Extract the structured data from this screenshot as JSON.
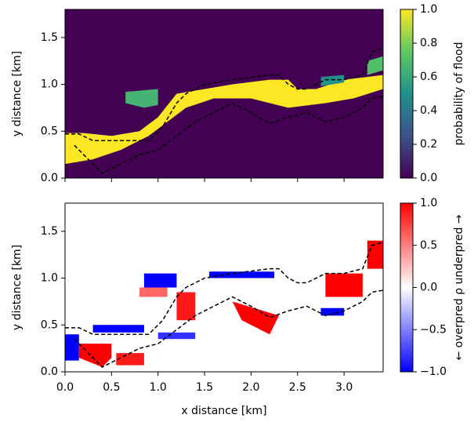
{
  "chart_data": [
    {
      "type": "heatmap",
      "ylabel": "y distance [km]",
      "xlim": [
        0,
        3.42
      ],
      "ylim": [
        0,
        1.8
      ],
      "xticks": [
        0,
        0.5,
        1,
        1.5,
        2,
        2.5,
        3
      ],
      "yticks": [
        {
          "value": 0,
          "label": "0.0"
        },
        {
          "value": 0.5,
          "label": "0.5"
        },
        {
          "value": 1,
          "label": "1.0"
        },
        {
          "value": 1.5,
          "label": "1.5"
        }
      ],
      "colormap": "viridis",
      "background_value": 0,
      "colorbar": {
        "label": "probability of flood",
        "lim": [
          0,
          1
        ],
        "ticks": [
          {
            "value": 0,
            "label": "0.0"
          },
          {
            "value": 0.2,
            "label": "0.2"
          },
          {
            "value": 0.4,
            "label": "0.4"
          },
          {
            "value": 0.6,
            "label": "0.6"
          },
          {
            "value": 0.8,
            "label": "0.8"
          },
          {
            "value": 1,
            "label": "1.0"
          }
        ]
      },
      "regions": [
        {
          "value": 1,
          "x": [
            0,
            0.3,
            0.6,
            0.9,
            1.1,
            1.3,
            1.6,
            2.0,
            2.4,
            2.8,
            3.1,
            3.42,
            3.42,
            3.0,
            2.7,
            2.5,
            2.4,
            2.2,
            1.8,
            1.5,
            1.2,
            1.0,
            0.8,
            0.5,
            0.2,
            0
          ],
          "y": [
            0.15,
            0.2,
            0.3,
            0.45,
            0.6,
            0.75,
            0.85,
            0.85,
            0.75,
            0.8,
            0.85,
            0.95,
            1.1,
            1.05,
            0.95,
            0.95,
            1.05,
            1.05,
            1.0,
            0.95,
            0.9,
            0.65,
            0.5,
            0.45,
            0.48,
            0.48
          ]
        },
        {
          "value": 0.65,
          "x": [
            0.65,
            1.0,
            1.0,
            0.85,
            0.65
          ],
          "y": [
            0.92,
            0.95,
            0.78,
            0.75,
            0.8
          ]
        },
        {
          "value": 0.5,
          "x": [
            2.75,
            3.0,
            3.0,
            2.75
          ],
          "y": [
            0.98,
            1.02,
            1.1,
            1.08
          ]
        },
        {
          "value": 0.7,
          "x": [
            3.25,
            3.42,
            3.42,
            3.25
          ],
          "y": [
            1.1,
            1.15,
            1.3,
            1.25
          ]
        }
      ],
      "contours": [
        {
          "x": [
            0,
            0.15,
            0.3,
            0.6,
            0.9,
            1.05,
            1.2,
            1.3,
            1.5,
            1.8,
            2.2,
            2.3,
            2.4,
            2.5,
            2.6,
            2.8,
            3.0,
            3.2,
            3.3,
            3.42
          ],
          "y": [
            0.47,
            0.47,
            0.4,
            0.4,
            0.4,
            0.55,
            0.8,
            0.9,
            1.0,
            1.05,
            1.1,
            1.1,
            1.0,
            0.95,
            0.95,
            1.05,
            1.05,
            1.1,
            1.35,
            1.38
          ]
        },
        {
          "x": [
            0.1,
            0.25,
            0.4,
            0.6,
            0.8,
            1.0,
            1.2,
            1.4,
            1.6,
            1.8,
            2.0,
            2.2,
            2.4,
            2.6,
            2.8,
            3.0,
            3.2,
            3.3,
            3.42
          ],
          "y": [
            0.35,
            0.2,
            0.05,
            0.15,
            0.25,
            0.3,
            0.45,
            0.6,
            0.7,
            0.8,
            0.7,
            0.58,
            0.65,
            0.7,
            0.6,
            0.65,
            0.75,
            0.85,
            0.87
          ]
        }
      ]
    },
    {
      "type": "heatmap",
      "ylabel": "y distance [km]",
      "xlabel": "x distance [km]",
      "xlim": [
        0,
        3.42
      ],
      "ylim": [
        0,
        1.8
      ],
      "xticks": [
        {
          "value": 0,
          "label": "0.0"
        },
        {
          "value": 0.5,
          "label": "0.5"
        },
        {
          "value": 1,
          "label": "1.0"
        },
        {
          "value": 1.5,
          "label": "1.5"
        },
        {
          "value": 2,
          "label": "2.0"
        },
        {
          "value": 2.5,
          "label": "2.5"
        },
        {
          "value": 3,
          "label": "3.0"
        }
      ],
      "yticks": [
        {
          "value": 0,
          "label": "0.0"
        },
        {
          "value": 0.5,
          "label": "0.5"
        },
        {
          "value": 1,
          "label": "1.0"
        },
        {
          "value": 1.5,
          "label": "1.5"
        }
      ],
      "colormap": "bwr",
      "background_value": 0,
      "colorbar": {
        "label": "← overpred    ρ    underpred →",
        "lim": [
          -1,
          1
        ],
        "ticks": [
          {
            "value": -1,
            "label": "−1.0"
          },
          {
            "value": -0.5,
            "label": "−0.5"
          },
          {
            "value": 0,
            "label": "0.0"
          },
          {
            "value": 0.5,
            "label": "0.5"
          },
          {
            "value": 1,
            "label": "1.0"
          }
        ]
      },
      "regions": [
        {
          "value": -1,
          "x": [
            0,
            0.15,
            0.15,
            0
          ],
          "y": [
            0.12,
            0.12,
            0.4,
            0.4
          ]
        },
        {
          "value": -1,
          "x": [
            0.3,
            0.85,
            0.85,
            0.3
          ],
          "y": [
            0.42,
            0.42,
            0.5,
            0.5
          ]
        },
        {
          "value": -1,
          "x": [
            0.85,
            1.2,
            1.2,
            0.85
          ],
          "y": [
            0.9,
            0.9,
            1.05,
            1.05
          ]
        },
        {
          "value": -1,
          "x": [
            1.55,
            2.25,
            2.25,
            1.55
          ],
          "y": [
            1.0,
            1.0,
            1.07,
            1.07
          ]
        },
        {
          "value": -1,
          "x": [
            2.75,
            3.0,
            3.0,
            2.75
          ],
          "y": [
            0.6,
            0.6,
            0.68,
            0.68
          ]
        },
        {
          "value": -0.8,
          "x": [
            1.0,
            1.4,
            1.4,
            1.0
          ],
          "y": [
            0.35,
            0.35,
            0.42,
            0.42
          ]
        },
        {
          "value": 1,
          "x": [
            0.15,
            0.5,
            0.5,
            0.4,
            0.15
          ],
          "y": [
            0.3,
            0.3,
            0.15,
            0.05,
            0.15
          ]
        },
        {
          "value": 0.9,
          "x": [
            0.55,
            0.85,
            0.85,
            0.55
          ],
          "y": [
            0.07,
            0.07,
            0.2,
            0.2
          ]
        },
        {
          "value": 1,
          "x": [
            1.8,
            2.3,
            2.2,
            1.9
          ],
          "y": [
            0.75,
            0.6,
            0.4,
            0.55
          ]
        },
        {
          "value": 0.9,
          "x": [
            1.2,
            1.4,
            1.4,
            1.2
          ],
          "y": [
            0.55,
            0.55,
            0.85,
            0.85
          ]
        },
        {
          "value": 1,
          "x": [
            2.8,
            3.2,
            3.2,
            2.8
          ],
          "y": [
            0.8,
            0.8,
            1.05,
            1.05
          ]
        },
        {
          "value": 1,
          "x": [
            3.25,
            3.42,
            3.42,
            3.25
          ],
          "y": [
            1.1,
            1.1,
            1.4,
            1.4
          ]
        },
        {
          "value": 0.6,
          "x": [
            0.8,
            1.1,
            1.1,
            0.8
          ],
          "y": [
            0.8,
            0.8,
            0.9,
            0.9
          ]
        }
      ],
      "contours": [
        {
          "x": [
            0,
            0.15,
            0.3,
            0.6,
            0.9,
            1.05,
            1.2,
            1.3,
            1.5,
            1.8,
            2.2,
            2.3,
            2.4,
            2.5,
            2.6,
            2.8,
            3.0,
            3.2,
            3.3,
            3.42
          ],
          "y": [
            0.47,
            0.47,
            0.4,
            0.4,
            0.4,
            0.55,
            0.8,
            0.9,
            1.0,
            1.05,
            1.1,
            1.1,
            1.0,
            0.95,
            0.95,
            1.05,
            1.05,
            1.1,
            1.35,
            1.38
          ]
        },
        {
          "x": [
            0.1,
            0.25,
            0.4,
            0.6,
            0.8,
            1.0,
            1.2,
            1.4,
            1.6,
            1.8,
            2.0,
            2.2,
            2.4,
            2.6,
            2.8,
            3.0,
            3.2,
            3.3,
            3.42
          ],
          "y": [
            0.35,
            0.2,
            0.05,
            0.15,
            0.25,
            0.3,
            0.45,
            0.6,
            0.7,
            0.8,
            0.7,
            0.58,
            0.65,
            0.7,
            0.6,
            0.65,
            0.75,
            0.85,
            0.87
          ]
        }
      ]
    }
  ]
}
